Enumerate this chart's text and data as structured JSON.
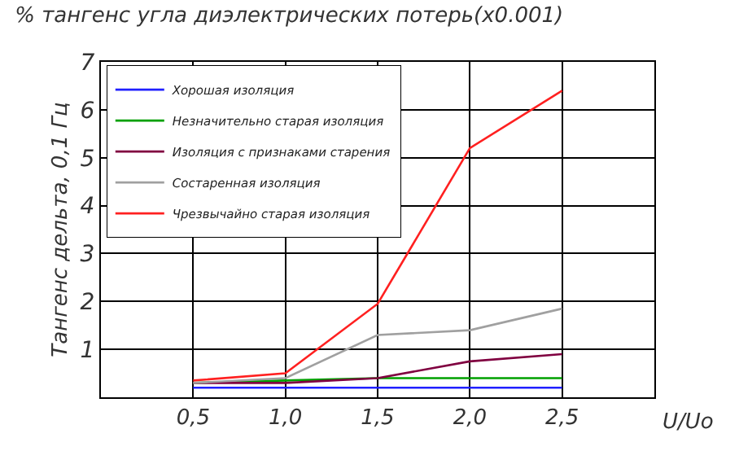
{
  "chart_data": {
    "type": "line",
    "title": "% тангенс угла диэлектрических потерь(x0.001)",
    "xlabel": "U/Uo",
    "ylabel": "Тангенс дельта, 0,1 Гц",
    "x": [
      0.5,
      1.0,
      1.5,
      2.0,
      2.5
    ],
    "series": [
      {
        "name": "Хорошая изоляция",
        "color": "#2020ff",
        "values": [
          0.2,
          0.2,
          0.2,
          0.2,
          0.2
        ]
      },
      {
        "name": "Незначительно старая изоляция",
        "color": "#00a000",
        "values": [
          0.3,
          0.35,
          0.4,
          0.4,
          0.4
        ]
      },
      {
        "name": "Изоляция с признаками старения",
        "color": "#800040",
        "values": [
          0.3,
          0.3,
          0.4,
          0.75,
          0.9
        ]
      },
      {
        "name": "Состаренная изоляция",
        "color": "#a0a0a0",
        "values": [
          0.3,
          0.4,
          1.3,
          1.4,
          1.85
        ]
      },
      {
        "name": "Чрезвычайно старая изоляция",
        "color": "#ff2020",
        "values": [
          0.35,
          0.5,
          1.95,
          5.2,
          6.4
        ]
      }
    ],
    "xlim": [
      0,
      3
    ],
    "xticks": [
      {
        "value": 0.5,
        "label": "0,5"
      },
      {
        "value": 1.0,
        "label": "1,0"
      },
      {
        "value": 1.5,
        "label": "1,5"
      },
      {
        "value": 2.0,
        "label": "2,0"
      },
      {
        "value": 2.5,
        "label": "2,5"
      }
    ],
    "ylim": [
      0,
      7
    ],
    "yticks": [
      1,
      2,
      3,
      4,
      5,
      6,
      7
    ],
    "grid": true,
    "legend": "top left",
    "marker": "none",
    "line_style": "solid"
  }
}
